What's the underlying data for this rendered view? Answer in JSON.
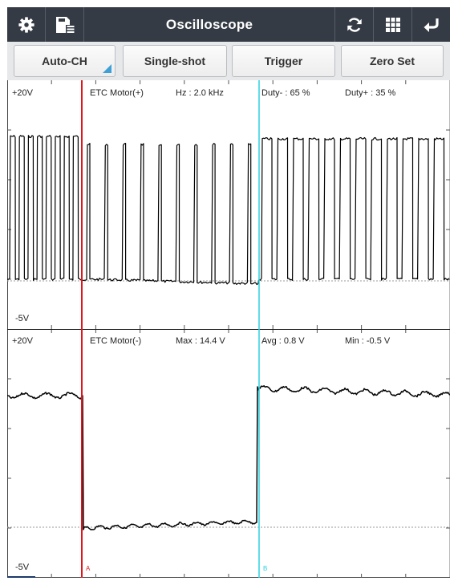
{
  "topbar": {
    "title": "Oscilloscope",
    "left_icons": [
      "gear-icon",
      "save-list-icon"
    ],
    "right_icons": [
      "refresh-icon",
      "grid-icon",
      "back-icon"
    ]
  },
  "toolbar": {
    "buttons": [
      "Auto-CH",
      "Single-shot",
      "Trigger",
      "Zero Set"
    ]
  },
  "scope": {
    "channels": [
      {
        "scale_top": "+20V",
        "scale_bottom": "-5V",
        "name": "ETC Motor(+)",
        "readouts": [
          "Hz : 2.0 kHz",
          "Duty- : 65 %",
          "Duty+ : 35 %"
        ]
      },
      {
        "scale_top": "+20V",
        "scale_bottom": "-5V",
        "name": "ETC Motor(-)",
        "readouts": [
          "Max : 14.4 V",
          "Avg : 0.8 V",
          "Min : -0.5 V"
        ]
      }
    ],
    "cursors": [
      {
        "label": "A",
        "color": "#e0161c"
      },
      {
        "label": "B",
        "color": "#28d3e0"
      }
    ]
  },
  "colors": {
    "header_bg": "#353b45",
    "toolbar_bg": "#e7e8ea",
    "accent": "#3fa0d6",
    "trace": "#000000"
  }
}
